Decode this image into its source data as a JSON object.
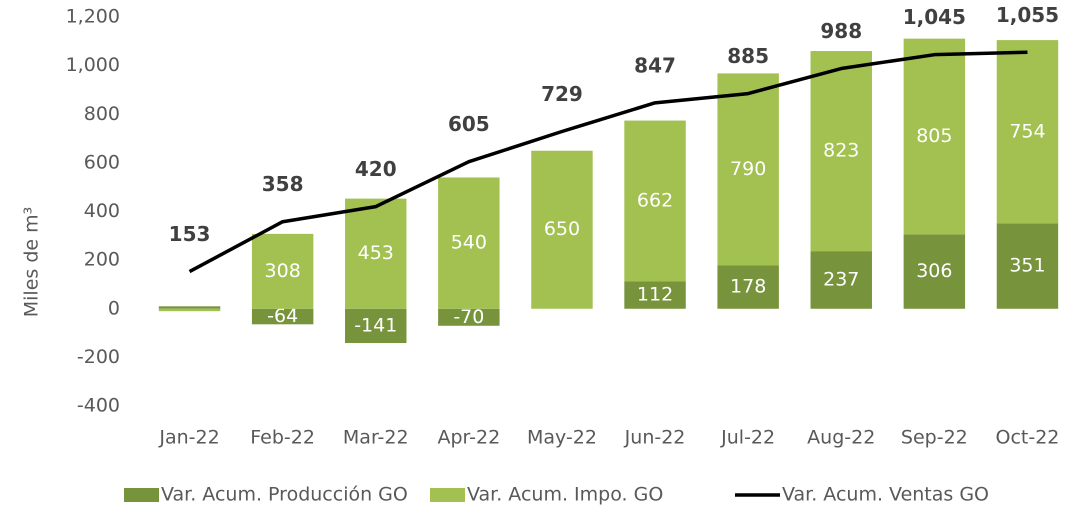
{
  "chart_data": {
    "type": "bar",
    "y_label": "Miles de m³",
    "categories": [
      "Jan-22",
      "Feb-22",
      "Mar-22",
      "Apr-22",
      "May-22",
      "Jun-22",
      "Jul-22",
      "Aug-22",
      "Sep-22",
      "Oct-22"
    ],
    "series": [
      {
        "name": "Var. Acum. Producción GO",
        "color": "#77933c",
        "values": [
          10,
          -64,
          -141,
          -70,
          0,
          112,
          178,
          237,
          306,
          351
        ],
        "value_labels": [
          null,
          "-64",
          "-141",
          "-70",
          null,
          "112",
          "178",
          "237",
          "306",
          "351"
        ]
      },
      {
        "name": "Var. Acum. Impo. GO",
        "color": "#a2c151",
        "values": [
          -10,
          308,
          453,
          540,
          650,
          662,
          790,
          823,
          805,
          754
        ],
        "value_labels": [
          null,
          "308",
          "453",
          "540",
          "650",
          "662",
          "790",
          "823",
          "805",
          "754"
        ]
      },
      {
        "name": "Var. Acum. Ventas GO",
        "color": "#000000",
        "type": "line",
        "values": [
          153,
          358,
          420,
          605,
          729,
          847,
          885,
          988,
          1045,
          1055
        ],
        "value_labels": [
          "153",
          "358",
          "420",
          "605",
          "729",
          "847",
          "885",
          "988",
          "1,045",
          "1,055"
        ]
      }
    ],
    "ylim": [
      -400,
      1200
    ],
    "yticks": [
      -400,
      -200,
      0,
      200,
      400,
      600,
      800,
      {
        "value": 1000,
        "label": "1,000"
      },
      {
        "value": 1200,
        "label": "1,200"
      }
    ],
    "stacked": true,
    "grid": false,
    "legend": "bottom"
  }
}
